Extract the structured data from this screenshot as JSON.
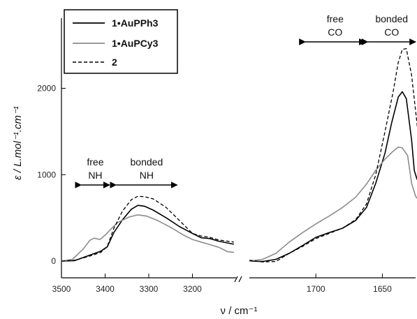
{
  "chart_data": {
    "type": "line",
    "xlabel": "ν / cm⁻¹",
    "ylabel": "ε / L.mol⁻¹.cm⁻¹",
    "ylim": [
      -200,
      2800
    ],
    "yticks": [
      0,
      1000,
      2000
    ],
    "broken_axis": true,
    "segments": [
      {
        "xlim": [
          3500,
          3100
        ],
        "xticks": [
          3500,
          3400,
          3300,
          3200
        ]
      },
      {
        "xlim": [
          1750,
          1625
        ],
        "xticks": [
          1700,
          1650
        ]
      }
    ],
    "legend": {
      "position": "top-left",
      "entries": [
        "1•AuPPh3",
        "1•AuPCy3",
        "2"
      ]
    },
    "annotations": [
      {
        "line1": "free",
        "line2": "NH",
        "x_range": [
          3455,
          3390
        ]
      },
      {
        "line1": "bonded",
        "line2": "NH",
        "x_range": [
          3375,
          3235
        ]
      },
      {
        "line1": "free",
        "line2": "CO",
        "x_range": [
          1708,
          1663
        ]
      },
      {
        "line1": "bonded",
        "line2": "CO",
        "x_range": [
          1661,
          1625
        ]
      }
    ],
    "series": [
      {
        "name": "1•AuPPh3",
        "color": "#000000",
        "dash": "none",
        "width": 1.6,
        "segments": [
          [
            [
              3500,
              0
            ],
            [
              3470,
              5
            ],
            [
              3440,
              60
            ],
            [
              3410,
              115
            ],
            [
              3395,
              165
            ],
            [
              3380,
              330
            ],
            [
              3360,
              480
            ],
            [
              3340,
              600
            ],
            [
              3325,
              645
            ],
            [
              3310,
              635
            ],
            [
              3290,
              590
            ],
            [
              3260,
              500
            ],
            [
              3230,
              400
            ],
            [
              3200,
              320
            ],
            [
              3180,
              270
            ],
            [
              3160,
              260
            ],
            [
              3140,
              230
            ],
            [
              3120,
              210
            ],
            [
              3105,
              195
            ]
          ],
          [
            [
              1750,
              0
            ],
            [
              1740,
              -5
            ],
            [
              1730,
              20
            ],
            [
              1720,
              90
            ],
            [
              1710,
              180
            ],
            [
              1700,
              275
            ],
            [
              1690,
              330
            ],
            [
              1680,
              380
            ],
            [
              1670,
              470
            ],
            [
              1662,
              620
            ],
            [
              1655,
              900
            ],
            [
              1648,
              1250
            ],
            [
              1643,
              1600
            ],
            [
              1638,
              1900
            ],
            [
              1635,
              1960
            ],
            [
              1632,
              1880
            ],
            [
              1628,
              1400
            ],
            [
              1626,
              1050
            ],
            [
              1624,
              950
            ],
            [
              1622,
              900
            ],
            [
              1620,
              900
            ]
          ]
        ]
      },
      {
        "name": "1•AuPCy3",
        "color": "#8c8c8c",
        "dash": "none",
        "width": 1.6,
        "segments": [
          [
            [
              3500,
              0
            ],
            [
              3475,
              20
            ],
            [
              3450,
              140
            ],
            [
              3435,
              240
            ],
            [
              3425,
              265
            ],
            [
              3412,
              250
            ],
            [
              3400,
              300
            ],
            [
              3385,
              380
            ],
            [
              3370,
              450
            ],
            [
              3345,
              510
            ],
            [
              3325,
              535
            ],
            [
              3305,
              520
            ],
            [
              3280,
              470
            ],
            [
              3250,
              390
            ],
            [
              3220,
              300
            ],
            [
              3200,
              250
            ],
            [
              3180,
              220
            ],
            [
              3160,
              190
            ],
            [
              3140,
              160
            ],
            [
              3120,
              110
            ],
            [
              3105,
              100
            ]
          ],
          [
            [
              1750,
              0
            ],
            [
              1740,
              20
            ],
            [
              1730,
              90
            ],
            [
              1720,
              220
            ],
            [
              1710,
              330
            ],
            [
              1700,
              430
            ],
            [
              1690,
              520
            ],
            [
              1680,
              620
            ],
            [
              1670,
              740
            ],
            [
              1662,
              890
            ],
            [
              1655,
              1050
            ],
            [
              1648,
              1180
            ],
            [
              1642,
              1270
            ],
            [
              1638,
              1320
            ],
            [
              1635,
              1310
            ],
            [
              1631,
              1220
            ],
            [
              1628,
              900
            ],
            [
              1625,
              750
            ],
            [
              1622,
              690
            ],
            [
              1620,
              720
            ]
          ]
        ]
      },
      {
        "name": "2",
        "color": "#000000",
        "dash": "5,3",
        "width": 1.3,
        "segments": [
          [
            [
              3500,
              0
            ],
            [
              3470,
              10
            ],
            [
              3440,
              50
            ],
            [
              3410,
              100
            ],
            [
              3395,
              170
            ],
            [
              3380,
              380
            ],
            [
              3360,
              580
            ],
            [
              3340,
              710
            ],
            [
              3325,
              750
            ],
            [
              3310,
              745
            ],
            [
              3290,
              720
            ],
            [
              3260,
              620
            ],
            [
              3230,
              470
            ],
            [
              3200,
              320
            ],
            [
              3180,
              290
            ],
            [
              3160,
              275
            ],
            [
              3140,
              245
            ],
            [
              3120,
              230
            ],
            [
              3105,
              220
            ]
          ],
          [
            [
              1750,
              10
            ],
            [
              1740,
              -10
            ],
            [
              1730,
              -5
            ],
            [
              1720,
              90
            ],
            [
              1710,
              170
            ],
            [
              1700,
              260
            ],
            [
              1690,
              320
            ],
            [
              1680,
              380
            ],
            [
              1670,
              480
            ],
            [
              1662,
              660
            ],
            [
              1655,
              1000
            ],
            [
              1648,
              1500
            ],
            [
              1642,
              1950
            ],
            [
              1638,
              2300
            ],
            [
              1635,
              2450
            ],
            [
              1632,
              2460
            ],
            [
              1628,
              2150
            ],
            [
              1624,
              1600
            ],
            [
              1622,
              1250
            ],
            [
              1620,
              1200
            ]
          ]
        ]
      }
    ]
  }
}
